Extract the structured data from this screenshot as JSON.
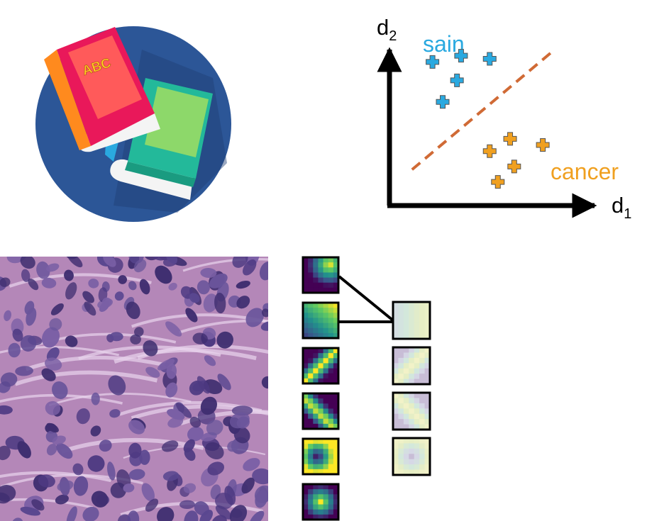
{
  "books_icon": {
    "book_label": "ABC",
    "colors": {
      "circle": "#2c5697",
      "circle_dark": "#1e3f73",
      "red_book": "#e9185a",
      "red_book_cover": "#ff5a5a",
      "orange_spine": "#ff8a1e",
      "green_book": "#23b99a",
      "green_cover": "#8dd86a",
      "label": "#ffd21e"
    }
  },
  "scatter_panel": {
    "y_axis_label": "d",
    "y_axis_subscript": "2",
    "x_axis_label": "d",
    "x_axis_subscript": "1",
    "class_healthy_label": "sain",
    "class_cancer_label": "cancer",
    "healthy_color": "#2aa9e0",
    "cancer_color": "#f0a020",
    "boundary_color": "#d06a35",
    "healthy_points": [
      [
        0.2,
        0.92
      ],
      [
        0.34,
        0.96
      ],
      [
        0.48,
        0.94
      ],
      [
        0.32,
        0.8
      ],
      [
        0.25,
        0.66
      ]
    ],
    "cancer_points": [
      [
        0.48,
        0.34
      ],
      [
        0.58,
        0.42
      ],
      [
        0.74,
        0.38
      ],
      [
        0.6,
        0.24
      ],
      [
        0.52,
        0.14
      ]
    ],
    "boundary_line": [
      [
        0.1,
        0.22
      ],
      [
        0.78,
        0.98
      ]
    ]
  },
  "tissue_panel": {
    "background_color": "#b487b8",
    "nucleus_color": "#4e3a82"
  },
  "filters_panel": {
    "layer1_count": 6,
    "layer2_count": 4,
    "layer1_palette": "viridis",
    "layer2_palette": "pastel"
  }
}
